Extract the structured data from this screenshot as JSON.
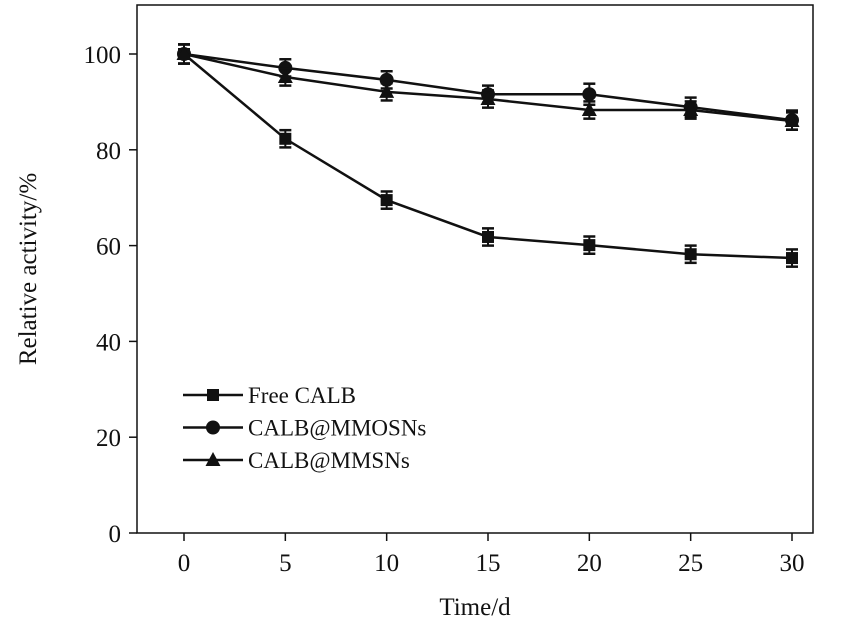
{
  "chart_data": {
    "type": "line",
    "title": "",
    "xlabel": "Time/d",
    "ylabel": "Relative activity/%",
    "xlim": [
      -4,
      34
    ],
    "ylim": [
      0,
      110
    ],
    "x": [
      0,
      5,
      10,
      15,
      20,
      25,
      30
    ],
    "xticks": [
      "0",
      "5",
      "10",
      "15",
      "20",
      "25",
      "30"
    ],
    "yticks": [
      "0",
      "20",
      "40",
      "60",
      "80",
      "100"
    ],
    "grid": false,
    "legend_position": "bottom-left",
    "series": [
      {
        "name": "Free CALB",
        "marker": "square",
        "values": [
          100,
          82.3,
          69.5,
          61.8,
          60.1,
          58.2,
          57.4
        ],
        "errors": [
          2,
          1.8,
          1.8,
          1.8,
          1.8,
          1.8,
          1.8
        ]
      },
      {
        "name": "CALB@MMOSNs",
        "marker": "circle",
        "values": [
          100,
          97.1,
          94.6,
          91.6,
          91.6,
          88.9,
          86.2
        ],
        "errors": [
          2,
          1.8,
          1.8,
          1.8,
          2.2,
          2.0,
          2.0
        ]
      },
      {
        "name": "CALB@MMSNs",
        "marker": "triangle",
        "values": [
          100,
          95.2,
          92.1,
          90.6,
          88.3,
          88.3,
          86.0
        ],
        "errors": [
          2,
          1.8,
          1.8,
          1.8,
          1.8,
          1.8,
          1.8
        ]
      }
    ],
    "color": "#111111"
  }
}
